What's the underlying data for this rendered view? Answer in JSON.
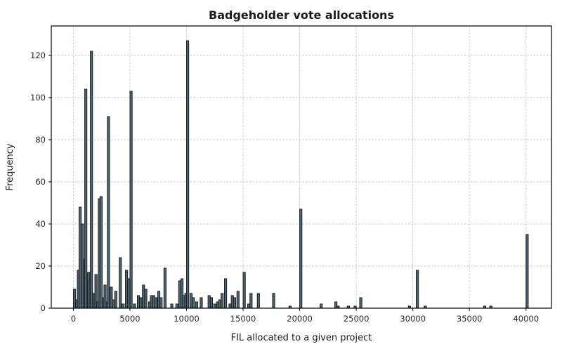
{
  "chart_data": {
    "type": "bar",
    "subtype": "histogram",
    "title": "Badgeholder vote allocations",
    "xlabel": "FIL allocated to a given project",
    "ylabel": "Frequency",
    "xlim": [
      -1950,
      42250
    ],
    "ylim": [
      0,
      134
    ],
    "xtick_values": [
      0,
      5000,
      10000,
      15000,
      20000,
      25000,
      30000,
      35000,
      40000
    ],
    "xtick_labels": [
      "0",
      "5000",
      "10000",
      "15000",
      "20000",
      "25000",
      "30000",
      "35000",
      "40000"
    ],
    "ytick_values": [
      0,
      20,
      40,
      60,
      80,
      100,
      120
    ],
    "ytick_labels": [
      "0",
      "20",
      "40",
      "60",
      "80",
      "100",
      "120"
    ],
    "grid": true,
    "grid_style": "dashed",
    "legend": false,
    "bin_width_fil": 200,
    "bars_columns": [
      "fil_bin_start",
      "frequency"
    ],
    "bars": [
      [
        0,
        9
      ],
      [
        200,
        4
      ],
      [
        350,
        18
      ],
      [
        500,
        48
      ],
      [
        700,
        40
      ],
      [
        900,
        23
      ],
      [
        1000,
        104
      ],
      [
        1250,
        17
      ],
      [
        1400,
        13
      ],
      [
        1500,
        122
      ],
      [
        1750,
        7
      ],
      [
        1900,
        16
      ],
      [
        2050,
        3
      ],
      [
        2200,
        52
      ],
      [
        2350,
        53
      ],
      [
        2550,
        5
      ],
      [
        2700,
        11
      ],
      [
        2900,
        3
      ],
      [
        3000,
        91
      ],
      [
        3250,
        10
      ],
      [
        3450,
        4
      ],
      [
        3650,
        8
      ],
      [
        4050,
        24
      ],
      [
        4300,
        2
      ],
      [
        4600,
        18
      ],
      [
        4800,
        14
      ],
      [
        5000,
        103
      ],
      [
        5300,
        2
      ],
      [
        5650,
        6
      ],
      [
        5850,
        5
      ],
      [
        6100,
        11
      ],
      [
        6300,
        9
      ],
      [
        6650,
        3
      ],
      [
        6800,
        6
      ],
      [
        7000,
        6
      ],
      [
        7200,
        5
      ],
      [
        7450,
        8
      ],
      [
        7650,
        5
      ],
      [
        8000,
        19
      ],
      [
        8600,
        2
      ],
      [
        9050,
        2
      ],
      [
        9300,
        13
      ],
      [
        9500,
        14
      ],
      [
        9650,
        6
      ],
      [
        9850,
        7
      ],
      [
        10000,
        127
      ],
      [
        10300,
        7
      ],
      [
        10500,
        5
      ],
      [
        10800,
        3
      ],
      [
        11200,
        5
      ],
      [
        11900,
        6
      ],
      [
        12100,
        5
      ],
      [
        12400,
        2
      ],
      [
        12650,
        3
      ],
      [
        12850,
        4
      ],
      [
        13050,
        7
      ],
      [
        13350,
        14
      ],
      [
        13750,
        2
      ],
      [
        13950,
        6
      ],
      [
        14150,
        5
      ],
      [
        14450,
        8
      ],
      [
        15000,
        17
      ],
      [
        15400,
        2
      ],
      [
        15600,
        7
      ],
      [
        16250,
        7
      ],
      [
        17600,
        7
      ],
      [
        19050,
        1
      ],
      [
        20000,
        47
      ],
      [
        21800,
        2
      ],
      [
        23100,
        3
      ],
      [
        23300,
        1
      ],
      [
        24200,
        1
      ],
      [
        24800,
        1
      ],
      [
        25300,
        5
      ],
      [
        29600,
        1
      ],
      [
        30300,
        18
      ],
      [
        31000,
        1
      ],
      [
        36250,
        1
      ],
      [
        36800,
        1
      ],
      [
        40000,
        35
      ]
    ],
    "colors": {
      "bar_fill": "#54646e",
      "bar_edge": "#10181d",
      "grid": "#c9c9c9",
      "axis": "#000000",
      "tick_text": "#262626",
      "title_text": "#1a1a1a",
      "background": "#ffffff"
    }
  }
}
